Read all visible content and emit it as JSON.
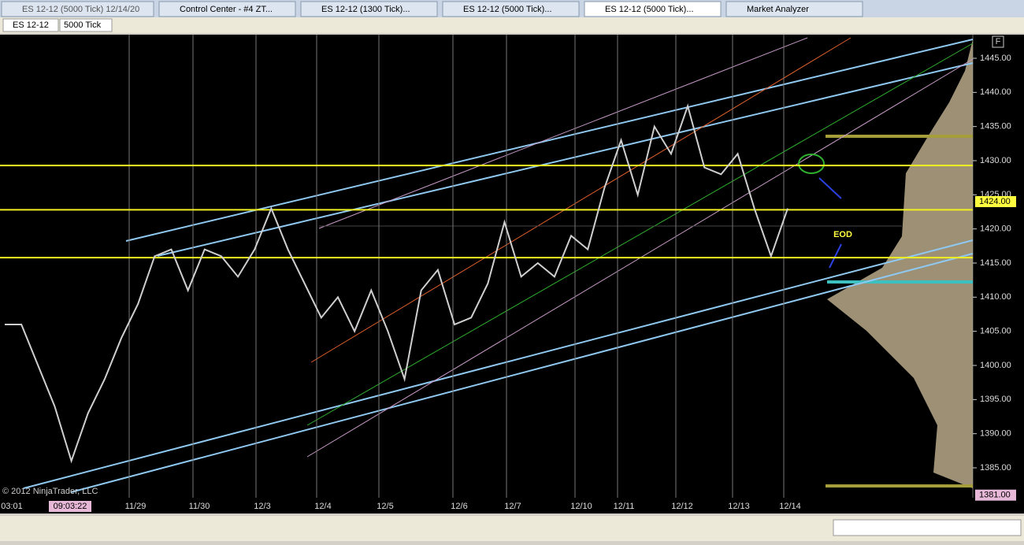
{
  "tabs": [
    "ES 12-12 (5000 Tick)  12/14/20",
    "Control Center - #4 ZT...",
    "ES 12-12 (1300 Tick)...",
    "ES 12-12 (5000 Tick)...",
    "ES 12-12 (5000 Tick)...",
    "Market Analyzer"
  ],
  "toolbar": {
    "instrument": "ES 12-12",
    "period": "5000 Tick"
  },
  "chart": {
    "flag": "F",
    "price_ticks": [
      {
        "value": 1445,
        "label": "1445.00"
      },
      {
        "value": 1440,
        "label": "1440.00"
      },
      {
        "value": 1435,
        "label": "1435.00"
      },
      {
        "value": 1430,
        "label": "1430.00"
      },
      {
        "value": 1425,
        "label": "1425.00"
      },
      {
        "value": 1420,
        "label": "1420.00"
      },
      {
        "value": 1415,
        "label": "1415.00"
      },
      {
        "value": 1410,
        "label": "1410.00"
      },
      {
        "value": 1405,
        "label": "1405.00"
      },
      {
        "value": 1400,
        "label": "1400.00"
      },
      {
        "value": 1395,
        "label": "1395.00"
      },
      {
        "value": 1390,
        "label": "1390.00"
      },
      {
        "value": 1385,
        "label": "1385.00"
      }
    ],
    "date_labels": [
      "03:01",
      "11/29",
      "11/30",
      "12/3",
      "12/4",
      "12/5",
      "12/6",
      "12/7",
      "12/10",
      "12/11",
      "12/12",
      "12/13",
      "12/14"
    ],
    "cursor_time": "09:03:22",
    "price_path": [
      1406,
      1406,
      1400,
      1394,
      1386,
      1393,
      1398,
      1404,
      1409,
      1416,
      1417,
      1411,
      1417,
      1416,
      1413,
      1417,
      1423,
      1417,
      1412,
      1407,
      1410,
      1405,
      1411,
      1405,
      1398,
      1411,
      1414,
      1406,
      1407,
      1412,
      1421,
      1413,
      1415,
      1413,
      1419,
      1417,
      1426,
      1433,
      1425,
      1435,
      1431,
      1438,
      1429,
      1428,
      1431,
      1423,
      1416,
      1423
    ],
    "levels": [
      1429.3,
      1422.8,
      1415.8
    ],
    "last_price": {
      "value": 1424,
      "label": "1424.00"
    },
    "low_marker": {
      "value": 1381,
      "label": "1381.00"
    },
    "annotation": "EOD",
    "copyright": "© 2012 NinjaTrader, LLC"
  }
}
